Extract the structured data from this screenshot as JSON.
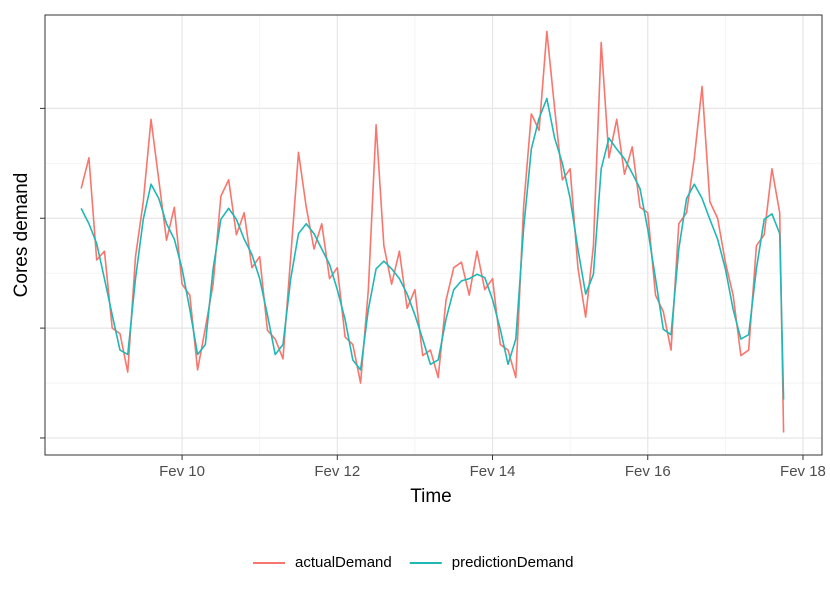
{
  "chart_data": {
    "type": "line",
    "x_label": "Time",
    "y_label": "Cores demand",
    "xlim": [
      8.234,
      18.245
    ],
    "ylim": [
      -0.155,
      3.85
    ],
    "xticks": [
      {
        "value": 10,
        "label": "Fev 10"
      },
      {
        "value": 12,
        "label": "Fev 12"
      },
      {
        "value": 14,
        "label": "Fev 14"
      },
      {
        "value": 16,
        "label": "Fev 16"
      },
      {
        "value": 18,
        "label": "Fev 18"
      }
    ],
    "yticks": [
      0,
      1,
      2,
      3
    ],
    "show_ytick_labels": false,
    "grid": true,
    "minor_grid": true,
    "legend": "bottom",
    "x": [
      8.7,
      8.8,
      8.9,
      9.0,
      9.1,
      9.2,
      9.3,
      9.4,
      9.5,
      9.6,
      9.7,
      9.8,
      9.9,
      10.0,
      10.1,
      10.2,
      10.3,
      10.4,
      10.5,
      10.6,
      10.7,
      10.8,
      10.9,
      11.0,
      11.1,
      11.2,
      11.3,
      11.4,
      11.5,
      11.6,
      11.7,
      11.8,
      11.9,
      12.0,
      12.1,
      12.2,
      12.3,
      12.4,
      12.5,
      12.6,
      12.7,
      12.8,
      12.9,
      13.0,
      13.1,
      13.2,
      13.3,
      13.4,
      13.5,
      13.6,
      13.7,
      13.8,
      13.9,
      14.0,
      14.1,
      14.2,
      14.3,
      14.4,
      14.5,
      14.6,
      14.7,
      14.8,
      14.9,
      15.0,
      15.1,
      15.2,
      15.3,
      15.4,
      15.5,
      15.6,
      15.7,
      15.8,
      15.9,
      16.0,
      16.1,
      16.2,
      16.3,
      16.4,
      16.5,
      16.6,
      16.7,
      16.8,
      16.9,
      17.0,
      17.1,
      17.2,
      17.3,
      17.4,
      17.5,
      17.6,
      17.7,
      17.75
    ],
    "series": [
      {
        "name": "actualDemand",
        "color": "#f8766d",
        "values": [
          2.27,
          2.55,
          1.62,
          1.7,
          1.0,
          0.95,
          0.6,
          1.65,
          2.15,
          2.9,
          2.35,
          1.8,
          2.1,
          1.4,
          1.3,
          0.62,
          1.0,
          1.4,
          2.2,
          2.35,
          1.85,
          2.05,
          1.55,
          1.65,
          0.98,
          0.9,
          0.72,
          1.65,
          2.6,
          2.1,
          1.72,
          1.95,
          1.45,
          1.55,
          0.92,
          0.85,
          0.5,
          1.35,
          2.85,
          1.75,
          1.4,
          1.7,
          1.18,
          1.35,
          0.75,
          0.8,
          0.55,
          1.25,
          1.55,
          1.6,
          1.3,
          1.7,
          1.35,
          1.45,
          0.85,
          0.8,
          0.55,
          2.1,
          2.95,
          2.8,
          3.7,
          3.0,
          2.35,
          2.45,
          1.55,
          1.1,
          1.75,
          3.6,
          2.55,
          2.9,
          2.4,
          2.65,
          2.1,
          2.05,
          1.3,
          1.15,
          0.8,
          1.95,
          2.05,
          2.55,
          3.2,
          2.15,
          2.0,
          1.6,
          1.3,
          0.75,
          0.8,
          1.75,
          1.85,
          2.45,
          2.05,
          0.05
        ]
      },
      {
        "name": "predictionDemand",
        "color": "#1fb8b5",
        "values": [
          2.09,
          1.95,
          1.77,
          1.45,
          1.12,
          0.8,
          0.76,
          1.45,
          1.99,
          2.31,
          2.18,
          1.95,
          1.81,
          1.54,
          1.17,
          0.76,
          0.85,
          1.54,
          1.99,
          2.09,
          1.99,
          1.81,
          1.67,
          1.45,
          1.12,
          0.76,
          0.85,
          1.45,
          1.86,
          1.95,
          1.86,
          1.72,
          1.58,
          1.35,
          1.08,
          0.71,
          0.62,
          1.17,
          1.54,
          1.61,
          1.54,
          1.45,
          1.31,
          1.12,
          0.9,
          0.67,
          0.71,
          1.08,
          1.35,
          1.43,
          1.45,
          1.49,
          1.46,
          1.26,
          0.99,
          0.67,
          0.9,
          1.9,
          2.63,
          2.91,
          3.09,
          2.73,
          2.5,
          2.18,
          1.72,
          1.31,
          1.49,
          2.45,
          2.73,
          2.63,
          2.54,
          2.41,
          2.27,
          1.9,
          1.45,
          0.99,
          0.94,
          1.72,
          2.18,
          2.31,
          2.18,
          1.99,
          1.81,
          1.54,
          1.17,
          0.9,
          0.94,
          1.54,
          1.99,
          2.04,
          1.86,
          0.35
        ]
      }
    ]
  }
}
